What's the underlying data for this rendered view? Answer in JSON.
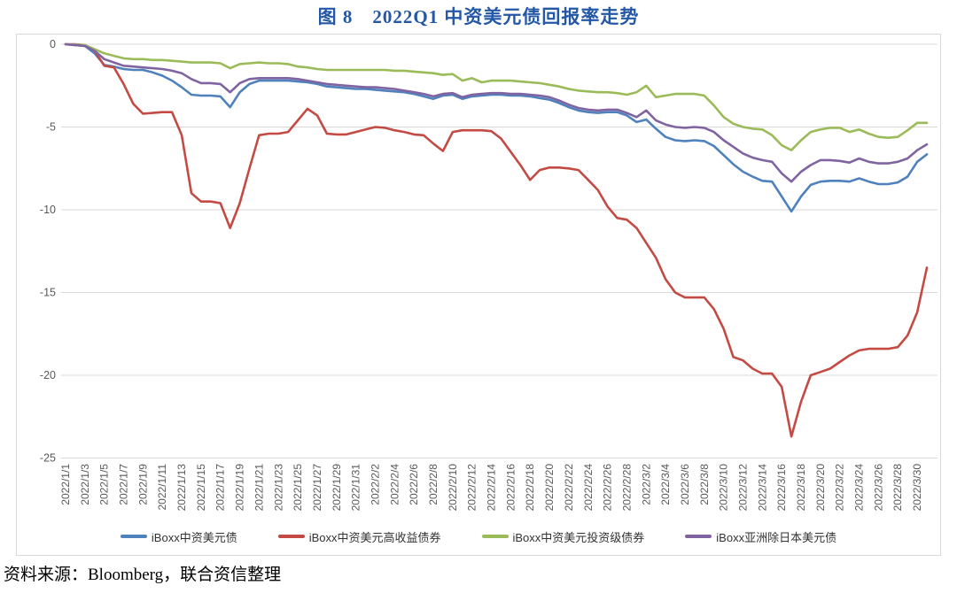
{
  "title": {
    "text": "图 8　2022Q1 中资美元债回报率走势",
    "color": "#2458A6"
  },
  "source_note": "资料来源：Bloomberg，联合资信整理",
  "colors": {
    "gridline": "#d9d9d9",
    "axis_text": "#595959",
    "legend_text": "#333333"
  },
  "chart_data": {
    "type": "line",
    "title": "图 8　2022Q1 中资美元债回报率走势",
    "xlabel": "",
    "ylabel": "",
    "ylim": [
      -25,
      0
    ],
    "y_ticks": [
      0,
      -5,
      -10,
      -15,
      -20,
      -25
    ],
    "grid": true,
    "legend_position": "bottom",
    "x_tick_every": 2,
    "x": [
      "2022/1/1",
      "2022/1/2",
      "2022/1/3",
      "2022/1/4",
      "2022/1/5",
      "2022/1/6",
      "2022/1/7",
      "2022/1/8",
      "2022/1/9",
      "2022/1/10",
      "2022/1/11",
      "2022/1/12",
      "2022/1/13",
      "2022/1/14",
      "2022/1/15",
      "2022/1/16",
      "2022/1/17",
      "2022/1/18",
      "2022/1/19",
      "2022/1/20",
      "2022/1/21",
      "2022/1/22",
      "2022/1/23",
      "2022/1/24",
      "2022/1/25",
      "2022/1/26",
      "2022/1/27",
      "2022/1/28",
      "2022/1/29",
      "2022/1/30",
      "2022/1/31",
      "2022/2/1",
      "2022/2/2",
      "2022/2/3",
      "2022/2/4",
      "2022/2/5",
      "2022/2/6",
      "2022/2/7",
      "2022/2/8",
      "2022/2/9",
      "2022/2/10",
      "2022/2/11",
      "2022/2/12",
      "2022/2/13",
      "2022/2/14",
      "2022/2/15",
      "2022/2/16",
      "2022/2/17",
      "2022/2/18",
      "2022/2/19",
      "2022/2/20",
      "2022/2/21",
      "2022/2/22",
      "2022/2/23",
      "2022/2/24",
      "2022/2/25",
      "2022/2/26",
      "2022/2/27",
      "2022/2/28",
      "2022/3/1",
      "2022/3/2",
      "2022/3/3",
      "2022/3/4",
      "2022/3/5",
      "2022/3/6",
      "2022/3/7",
      "2022/3/8",
      "2022/3/9",
      "2022/3/10",
      "2022/3/11",
      "2022/3/12",
      "2022/3/13",
      "2022/3/14",
      "2022/3/15",
      "2022/3/16",
      "2022/3/17",
      "2022/3/18",
      "2022/3/19",
      "2022/3/20",
      "2022/3/21",
      "2022/3/22",
      "2022/3/23",
      "2022/3/24",
      "2022/3/25",
      "2022/3/26",
      "2022/3/27",
      "2022/3/28",
      "2022/3/29",
      "2022/3/30",
      "2022/3/31"
    ],
    "series": [
      {
        "name": "iBoxx中资美元债",
        "color": "#4F81BD",
        "values": [
          0,
          -0.05,
          -0.1,
          -0.55,
          -1.25,
          -1.35,
          -1.5,
          -1.55,
          -1.55,
          -1.7,
          -1.9,
          -2.2,
          -2.6,
          -3.05,
          -3.1,
          -3.1,
          -3.15,
          -3.8,
          -2.9,
          -2.4,
          -2.2,
          -2.2,
          -2.2,
          -2.2,
          -2.25,
          -2.3,
          -2.4,
          -2.55,
          -2.6,
          -2.65,
          -2.7,
          -2.7,
          -2.75,
          -2.8,
          -2.85,
          -2.9,
          -3.0,
          -3.15,
          -3.3,
          -3.1,
          -3.05,
          -3.3,
          -3.15,
          -3.1,
          -3.05,
          -3.05,
          -3.1,
          -3.1,
          -3.15,
          -3.25,
          -3.35,
          -3.55,
          -3.8,
          -4.0,
          -4.1,
          -4.15,
          -4.1,
          -4.1,
          -4.3,
          -4.7,
          -4.55,
          -5.1,
          -5.6,
          -5.8,
          -5.85,
          -5.8,
          -5.85,
          -6.15,
          -6.7,
          -7.25,
          -7.7,
          -8.0,
          -8.25,
          -8.3,
          -9.2,
          -10.1,
          -9.2,
          -8.5,
          -8.3,
          -8.25,
          -8.25,
          -8.3,
          -8.1,
          -8.3,
          -8.45,
          -8.45,
          -8.35,
          -8.0,
          -7.1,
          -6.65
        ]
      },
      {
        "name": "iBoxx中资美元高收益债券",
        "color": "#C44A44",
        "values": [
          0,
          0,
          -0.05,
          -0.4,
          -1.3,
          -1.4,
          -2.4,
          -3.6,
          -4.2,
          -4.15,
          -4.1,
          -4.1,
          -5.5,
          -9.0,
          -9.5,
          -9.5,
          -9.6,
          -11.1,
          -9.6,
          -7.5,
          -5.5,
          -5.4,
          -5.4,
          -5.3,
          -4.6,
          -3.9,
          -4.3,
          -5.4,
          -5.45,
          -5.45,
          -5.3,
          -5.15,
          -5.0,
          -5.05,
          -5.2,
          -5.3,
          -5.45,
          -5.5,
          -6.0,
          -6.45,
          -5.3,
          -5.2,
          -5.2,
          -5.2,
          -5.25,
          -5.7,
          -6.5,
          -7.3,
          -8.2,
          -7.6,
          -7.45,
          -7.45,
          -7.5,
          -7.6,
          -8.2,
          -8.8,
          -9.8,
          -10.5,
          -10.6,
          -11.1,
          -12.0,
          -12.9,
          -14.2,
          -15.0,
          -15.3,
          -15.3,
          -15.3,
          -16.0,
          -17.2,
          -18.9,
          -19.1,
          -19.6,
          -19.9,
          -19.9,
          -20.7,
          -23.7,
          -21.6,
          -20.0,
          -19.8,
          -19.6,
          -19.2,
          -18.8,
          -18.5,
          -18.4,
          -18.4,
          -18.4,
          -18.3,
          -17.6,
          -16.2,
          -13.5
        ]
      },
      {
        "name": "iBoxx中资美元投资级债券",
        "color": "#9BBB59",
        "values": [
          0,
          -0.02,
          -0.05,
          -0.3,
          -0.55,
          -0.7,
          -0.85,
          -0.9,
          -0.9,
          -0.95,
          -0.95,
          -1.0,
          -1.05,
          -1.1,
          -1.1,
          -1.1,
          -1.15,
          -1.45,
          -1.2,
          -1.15,
          -1.1,
          -1.15,
          -1.15,
          -1.2,
          -1.35,
          -1.4,
          -1.5,
          -1.55,
          -1.55,
          -1.55,
          -1.55,
          -1.55,
          -1.55,
          -1.55,
          -1.6,
          -1.6,
          -1.65,
          -1.7,
          -1.75,
          -1.85,
          -1.8,
          -2.2,
          -2.05,
          -2.3,
          -2.2,
          -2.2,
          -2.2,
          -2.25,
          -2.3,
          -2.35,
          -2.45,
          -2.55,
          -2.7,
          -2.8,
          -2.85,
          -2.9,
          -2.9,
          -2.95,
          -3.05,
          -2.9,
          -2.5,
          -3.2,
          -3.1,
          -3.0,
          -3.0,
          -3.0,
          -3.1,
          -3.7,
          -4.4,
          -4.8,
          -5.0,
          -5.1,
          -5.15,
          -5.5,
          -6.1,
          -6.4,
          -5.8,
          -5.3,
          -5.15,
          -5.05,
          -5.05,
          -5.3,
          -5.15,
          -5.4,
          -5.6,
          -5.65,
          -5.6,
          -5.2,
          -4.75,
          -4.75
        ]
      },
      {
        "name": "iBoxx亚洲除日本美元债",
        "color": "#8064A2",
        "values": [
          0,
          -0.05,
          -0.1,
          -0.4,
          -0.9,
          -1.1,
          -1.3,
          -1.35,
          -1.4,
          -1.45,
          -1.5,
          -1.6,
          -1.75,
          -2.1,
          -2.35,
          -2.35,
          -2.4,
          -2.9,
          -2.35,
          -2.1,
          -2.05,
          -2.05,
          -2.05,
          -2.05,
          -2.1,
          -2.2,
          -2.3,
          -2.4,
          -2.45,
          -2.5,
          -2.55,
          -2.6,
          -2.6,
          -2.65,
          -2.7,
          -2.8,
          -2.9,
          -3.0,
          -3.15,
          -3.0,
          -2.95,
          -3.2,
          -3.05,
          -3.0,
          -2.95,
          -2.95,
          -3.0,
          -3.0,
          -3.05,
          -3.1,
          -3.2,
          -3.4,
          -3.65,
          -3.85,
          -3.95,
          -4.0,
          -3.95,
          -3.95,
          -4.15,
          -4.4,
          -4.0,
          -4.6,
          -4.85,
          -5.0,
          -5.05,
          -5.0,
          -5.05,
          -5.3,
          -5.8,
          -6.2,
          -6.6,
          -6.85,
          -7.0,
          -7.1,
          -7.8,
          -8.3,
          -7.7,
          -7.3,
          -7.0,
          -7.0,
          -7.05,
          -7.15,
          -6.9,
          -7.1,
          -7.2,
          -7.2,
          -7.1,
          -6.9,
          -6.4,
          -6.05
        ]
      }
    ]
  }
}
